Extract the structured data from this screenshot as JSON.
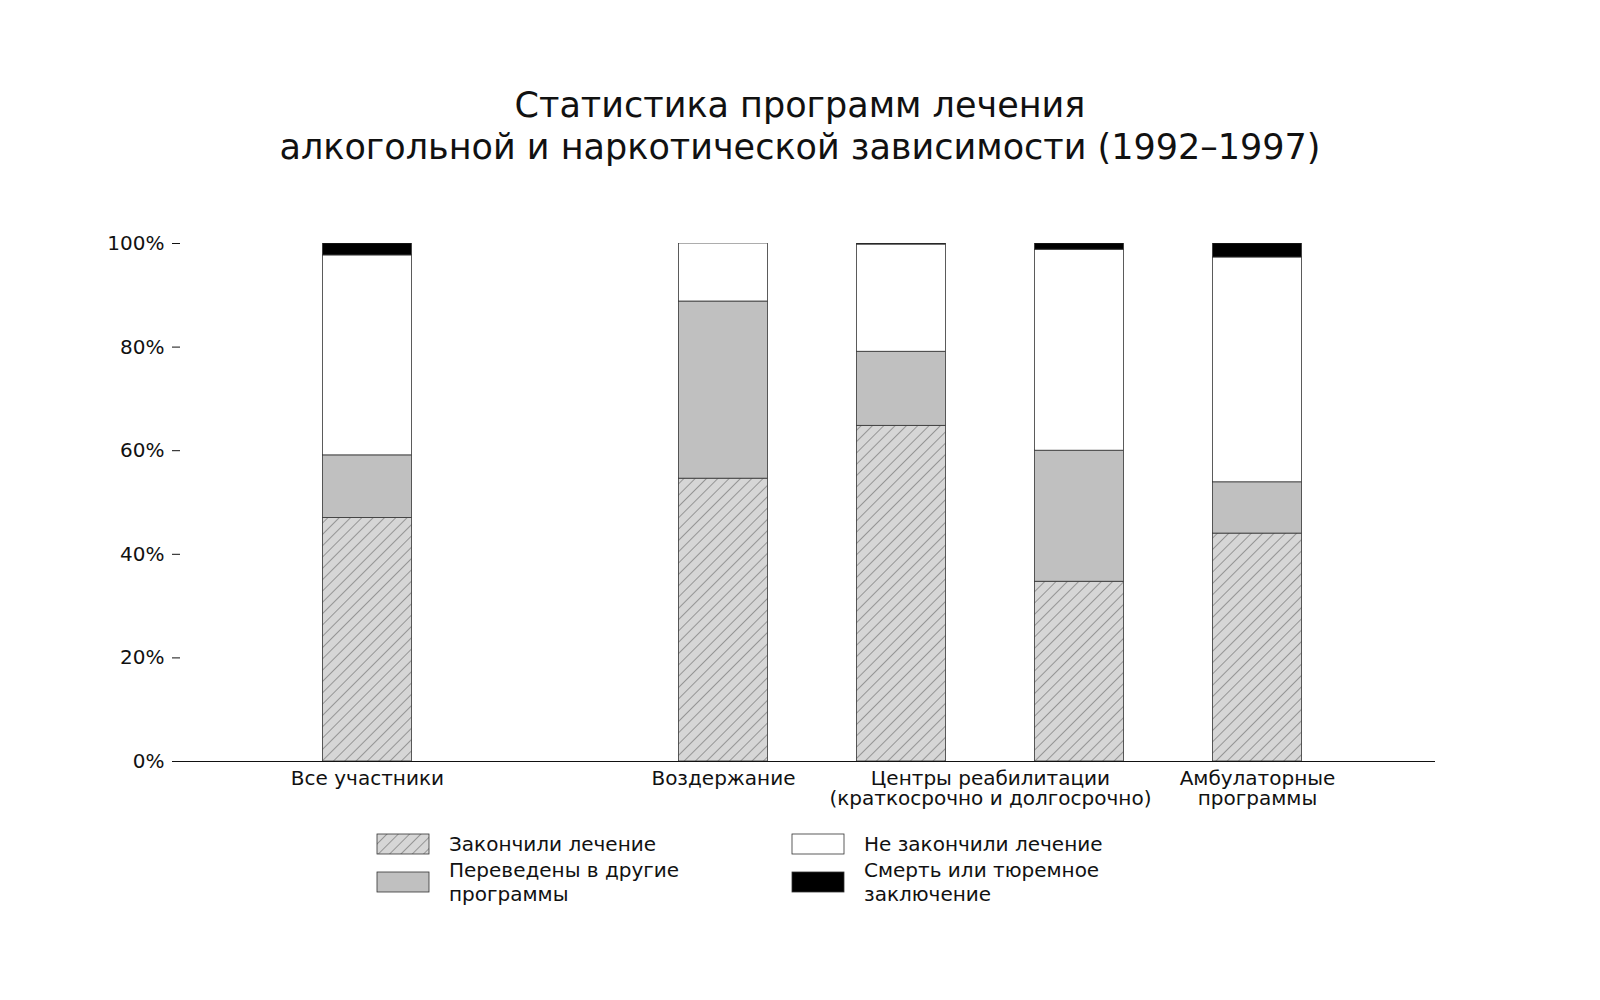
{
  "chart_data": {
    "type": "bar",
    "title": "Статистика программ лечения\nалкогольной и наркотической зависимости (1992–1997)",
    "stacked": true,
    "grid": false,
    "legend": "bottom",
    "categories": [
      "Все участники",
      null,
      "Воздержание",
      null,
      null,
      "Амбулаторные\nпрограммы"
    ],
    "category_groups": [
      {
        "label": "Центры реабилитации\n(краткосрочно и долгосрочно)",
        "members": [
          3,
          4
        ]
      }
    ],
    "series": [
      {
        "name": "Закончили лечение",
        "color": "#d6d6d6",
        "values": [
          47,
          null,
          54.6,
          64.8,
          34.7,
          44.0
        ]
      },
      {
        "name": "Переведены в другие программы",
        "color": "#c0c0c0",
        "values": [
          12.1,
          null,
          34.2,
          14.3,
          25.3,
          9.9
        ]
      },
      {
        "name": "Не закончили лечение",
        "color": "#ffffff",
        "values": [
          38.6,
          null,
          11.2,
          20.7,
          38.8,
          43.4
        ]
      },
      {
        "name": "Смерть или тюремное заключение",
        "color": "#000000",
        "values": [
          2.3,
          null,
          0,
          0.2,
          1.2,
          2.7
        ]
      }
    ],
    "ylim": [
      0,
      100
    ],
    "yticks": [
      {
        "value": 0,
        "label": "0%"
      },
      {
        "value": 20,
        "label": "20%"
      },
      {
        "value": 40,
        "label": "40%"
      },
      {
        "value": 60,
        "label": "60%"
      },
      {
        "value": 80,
        "label": "80%"
      },
      {
        "value": 100,
        "label": "100%"
      }
    ]
  }
}
